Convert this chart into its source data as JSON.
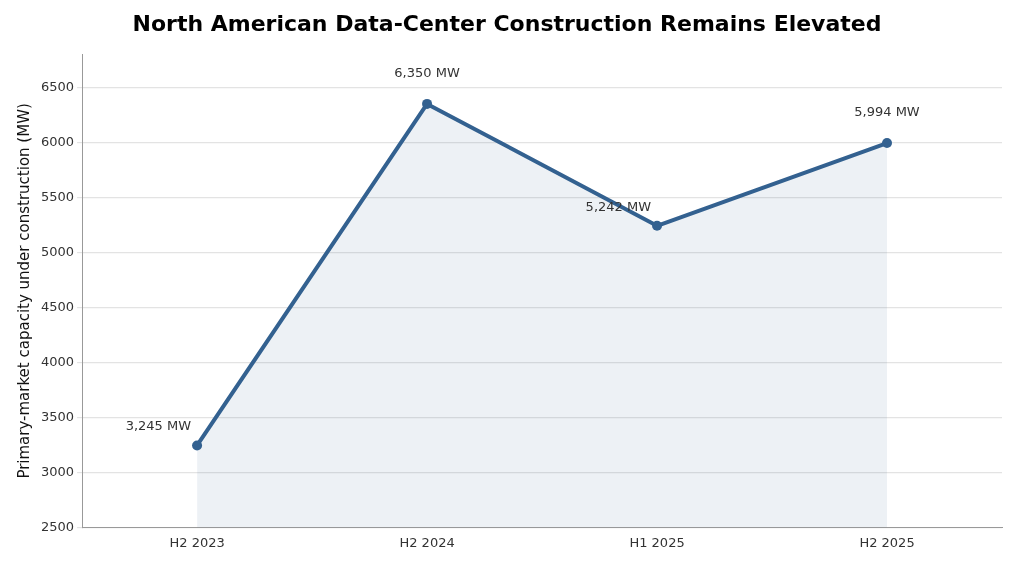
{
  "chart_data": {
    "type": "area",
    "title": "North American Data-Center Construction Remains Elevated",
    "ylabel": "Primary-market capacity under construction (MW)",
    "categories": [
      "H2 2023",
      "H2 2024",
      "H1 2025",
      "H2 2025"
    ],
    "series": [
      {
        "color": "#336190",
        "values": [
          3245,
          6350,
          5242,
          5994
        ],
        "value_labels": [
          "3,245 MW",
          "6,350 MW",
          "5,242 MW",
          "5,994 MW"
        ]
      }
    ],
    "ylim": [
      2500,
      6800
    ],
    "yticks": [
      2500,
      3000,
      3500,
      4000,
      4500,
      5000,
      5500,
      6000,
      6500
    ],
    "grid": "y",
    "legend": false,
    "marker": "circle",
    "line_style": "solid"
  }
}
